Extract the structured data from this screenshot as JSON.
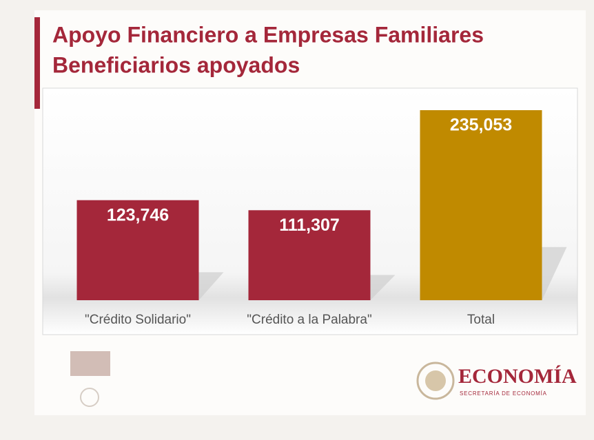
{
  "chart_data": {
    "type": "bar",
    "title": "Apoyo Financiero a Empresas Familiares",
    "subtitle": "Beneficiarios apoyados",
    "categories": [
      "\"Crédito Solidario\"",
      "\"Crédito a la Palabra\"",
      "Total"
    ],
    "values": [
      123746,
      111307,
      235053
    ],
    "value_labels": [
      "123,746",
      "111,307",
      "235,053"
    ],
    "colors": [
      "#a4273a",
      "#a4273a",
      "#c08a00"
    ]
  },
  "footer": {
    "logo_title": "ECONOMÍA",
    "logo_subtitle": "SECRETARÍA DE ECONOMÍA"
  }
}
